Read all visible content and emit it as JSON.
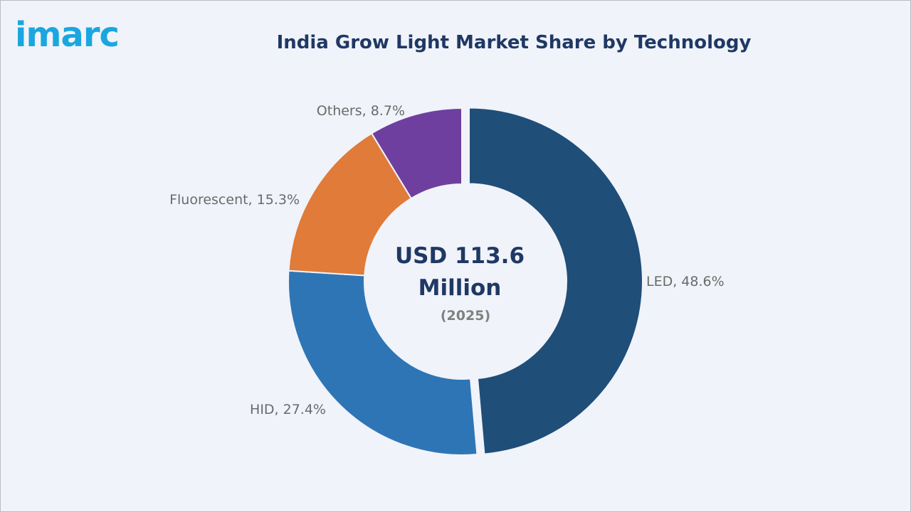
{
  "brand": {
    "logo_text": "imarc"
  },
  "chart_data": {
    "type": "pie",
    "title": "India Grow Light Market Share by Technology",
    "center_value_line1": "USD 113.6",
    "center_value_line2": "Million",
    "center_year": "(2025)",
    "slices": [
      {
        "label": "LED",
        "value": 48.6,
        "display": "LED, 48.6%",
        "color": "#1f4e79",
        "exploded": true
      },
      {
        "label": "HID",
        "value": 27.4,
        "display": "HID, 27.4%",
        "color": "#2e75b6",
        "exploded": false
      },
      {
        "label": "Fluorescent",
        "value": 15.3,
        "display": "Fluorescent, 15.3%",
        "color": "#e07b39",
        "exploded": false
      },
      {
        "label": "Others",
        "value": 8.7,
        "display": "Others, 8.7%",
        "color": "#6f3fa0",
        "exploded": false
      }
    ]
  }
}
